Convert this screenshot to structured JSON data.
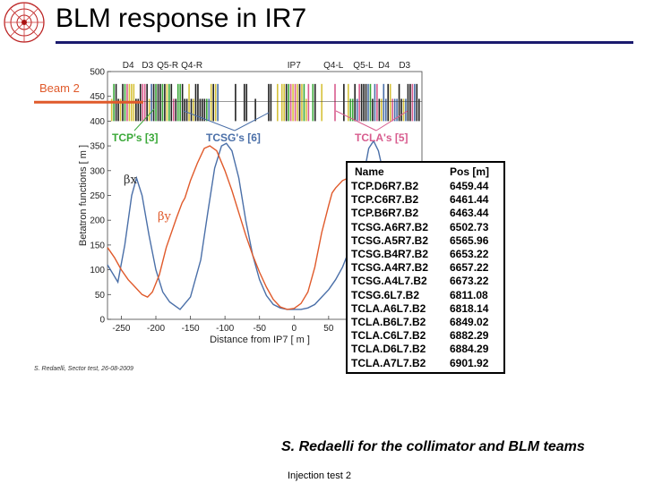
{
  "page": {
    "title": "BLM response in IR7"
  },
  "chart_data": {
    "type": "line",
    "xlabel": "Distance from IP7 [ m ]",
    "ylabel": "Betatron functions [ m ]",
    "xlim": [
      -270,
      185
    ],
    "ylim": [
      0,
      500
    ],
    "x_ticks": [
      -250,
      -200,
      -150,
      -100,
      -50,
      0,
      50,
      100
    ],
    "y_ticks": [
      0,
      50,
      100,
      150,
      200,
      250,
      300,
      350,
      400,
      450,
      500
    ],
    "element_labels": [
      {
        "label": "D4",
        "x": -240
      },
      {
        "label": "D3",
        "x": -212
      },
      {
        "label": "Q5-R",
        "x": -183
      },
      {
        "label": "Q4-R",
        "x": -148
      },
      {
        "label": "IP7",
        "x": 0
      },
      {
        "label": "Q4-L",
        "x": 57
      },
      {
        "label": "Q5-L",
        "x": 100
      },
      {
        "label": "D4",
        "x": 130
      },
      {
        "label": "D3",
        "x": 160
      }
    ],
    "series": [
      {
        "name": "βx",
        "color": "#4a6fa8",
        "points": [
          [
            -270,
            110
          ],
          [
            -255,
            75
          ],
          [
            -245,
            150
          ],
          [
            -235,
            250
          ],
          [
            -228,
            285
          ],
          [
            -220,
            250
          ],
          [
            -210,
            170
          ],
          [
            -200,
            100
          ],
          [
            -190,
            55
          ],
          [
            -180,
            35
          ],
          [
            -165,
            20
          ],
          [
            -150,
            45
          ],
          [
            -135,
            120
          ],
          [
            -125,
            215
          ],
          [
            -115,
            305
          ],
          [
            -105,
            350
          ],
          [
            -98,
            355
          ],
          [
            -90,
            340
          ],
          [
            -80,
            285
          ],
          [
            -70,
            200
          ],
          [
            -60,
            130
          ],
          [
            -50,
            80
          ],
          [
            -40,
            48
          ],
          [
            -30,
            30
          ],
          [
            -20,
            23
          ],
          [
            -10,
            20
          ],
          [
            0,
            20
          ],
          [
            10,
            20
          ],
          [
            20,
            23
          ],
          [
            30,
            30
          ],
          [
            40,
            45
          ],
          [
            50,
            60
          ],
          [
            60,
            80
          ],
          [
            70,
            105
          ],
          [
            80,
            140
          ],
          [
            90,
            195
          ],
          [
            100,
            285
          ],
          [
            108,
            345
          ],
          [
            115,
            360
          ],
          [
            122,
            340
          ],
          [
            130,
            290
          ],
          [
            140,
            240
          ],
          [
            145,
            225
          ]
        ]
      },
      {
        "name": "βy",
        "color": "#e05a2b",
        "points": [
          [
            -270,
            145
          ],
          [
            -260,
            125
          ],
          [
            -250,
            100
          ],
          [
            -240,
            80
          ],
          [
            -230,
            65
          ],
          [
            -220,
            50
          ],
          [
            -212,
            45
          ],
          [
            -205,
            55
          ],
          [
            -195,
            90
          ],
          [
            -185,
            145
          ],
          [
            -170,
            205
          ],
          [
            -162,
            235
          ],
          [
            -158,
            245
          ],
          [
            -150,
            280
          ],
          [
            -140,
            315
          ],
          [
            -130,
            345
          ],
          [
            -122,
            350
          ],
          [
            -112,
            340
          ],
          [
            -100,
            300
          ],
          [
            -90,
            260
          ],
          [
            -80,
            215
          ],
          [
            -70,
            170
          ],
          [
            -60,
            130
          ],
          [
            -50,
            95
          ],
          [
            -40,
            65
          ],
          [
            -30,
            40
          ],
          [
            -20,
            25
          ],
          [
            -10,
            20
          ],
          [
            0,
            22
          ],
          [
            10,
            32
          ],
          [
            20,
            55
          ],
          [
            30,
            105
          ],
          [
            40,
            175
          ],
          [
            50,
            230
          ],
          [
            55,
            255
          ],
          [
            60,
            265
          ],
          [
            70,
            280
          ],
          [
            78,
            285
          ],
          [
            85,
            270
          ],
          [
            95,
            235
          ],
          [
            105,
            175
          ],
          [
            112,
            115
          ],
          [
            120,
            65
          ],
          [
            128,
            35
          ],
          [
            135,
            25
          ],
          [
            145,
            30
          ]
        ]
      }
    ],
    "annotations": [
      {
        "text": "Beam 2",
        "color": "#e05a2b"
      },
      {
        "text": "TCP's [3]",
        "color": "#3aa838"
      },
      {
        "text": "TCSG's [6]",
        "color": "#4a6fa8"
      },
      {
        "text": "TCLA's [5]",
        "color": "#d85c8e"
      },
      {
        "text": "βx",
        "color": "#333333"
      },
      {
        "text": "βy",
        "color": "#e05a2b"
      }
    ],
    "table": {
      "headers": [
        "Name",
        "Pos [m]"
      ],
      "rows": [
        [
          "TCP.D6R7.B2",
          "6459.44"
        ],
        [
          "TCP.C6R7.B2",
          "6461.44"
        ],
        [
          "TCP.B6R7.B2",
          "6463.44"
        ],
        [
          "TCSG.A6R7.B2",
          "6502.73"
        ],
        [
          "TCSG.A5R7.B2",
          "6565.96"
        ],
        [
          "TCSG.B4R7.B2",
          "6653.22"
        ],
        [
          "TCSG.A4R7.B2",
          "6657.22"
        ],
        [
          "TCSG.A4L7.B2",
          "6673.22"
        ],
        [
          "TCSG.6L7.B2",
          "6811.08"
        ],
        [
          "TCLA.A6L7.B2",
          "6818.14"
        ],
        [
          "TCLA.B6L7.B2",
          "6849.02"
        ],
        [
          "TCLA.C6L7.B2",
          "6882.29"
        ],
        [
          "TCLA.D6L7.B2",
          "6884.29"
        ],
        [
          "TCLA.A7L7.B2",
          "6901.92"
        ]
      ]
    },
    "small_credit": "S. Redaelli, Sector test, 26-08-2009"
  },
  "credit": "S. Redaelli for the collimator and BLM teams",
  "footer": "Injection test 2"
}
